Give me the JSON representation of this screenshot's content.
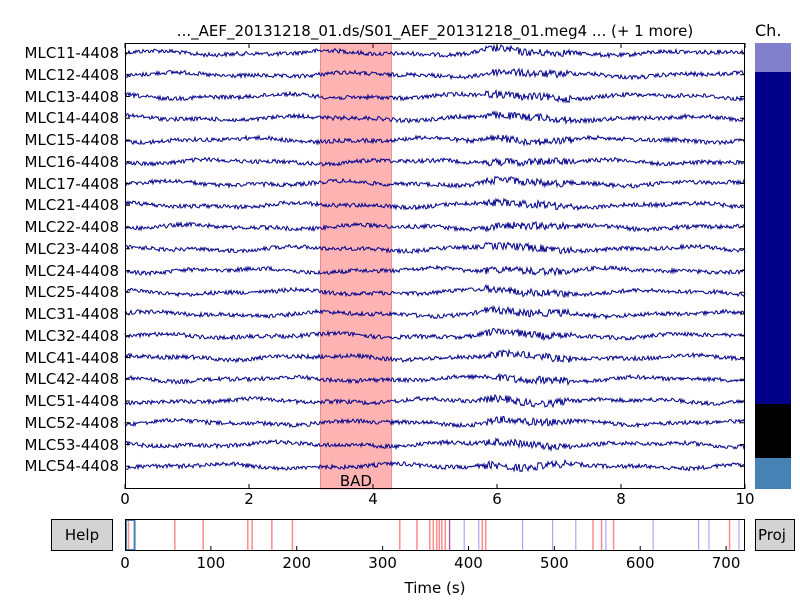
{
  "window": {
    "title": "..._AEF_20131218_01.ds/S01_AEF_20131218_01.meg4 ... (+ 1 more)",
    "channel_scroll_label": "Ch."
  },
  "channels": [
    "MLC11-4408",
    "MLC12-4408",
    "MLC13-4408",
    "MLC14-4408",
    "MLC15-4408",
    "MLC16-4408",
    "MLC17-4408",
    "MLC21-4408",
    "MLC22-4408",
    "MLC23-4408",
    "MLC24-4408",
    "MLC25-4408",
    "MLC31-4408",
    "MLC32-4408",
    "MLC41-4408",
    "MLC42-4408",
    "MLC51-4408",
    "MLC52-4408",
    "MLC53-4408",
    "MLC54-4408"
  ],
  "main_axis": {
    "xlim": [
      0,
      10
    ],
    "ticks": [
      "0",
      "2",
      "4",
      "6",
      "8",
      "10"
    ],
    "bad_annotation": {
      "label": "BAD",
      "start": 3.15,
      "end": 4.3,
      "color": "#ffb3b3"
    },
    "trace_color": "#00008b"
  },
  "overview_axis": {
    "xlim": [
      0,
      722
    ],
    "ticks": [
      "0",
      "100",
      "200",
      "300",
      "400",
      "500",
      "600",
      "700"
    ],
    "xlabel": "Time (s)",
    "bad_segments": [
      4,
      58,
      91,
      143,
      148,
      171,
      195,
      320,
      340,
      355,
      359,
      363,
      366,
      369,
      373,
      378,
      416,
      420,
      545,
      555,
      569,
      704
    ],
    "events": [
      378,
      395,
      412,
      463,
      498,
      525,
      560,
      615,
      668,
      680,
      715,
      722
    ],
    "view_window": [
      0,
      10
    ]
  },
  "buttons": {
    "help": "Help",
    "proj": "Proj"
  },
  "channel_scrollbar": {
    "segments": [
      {
        "color": "#8080cc",
        "fraction": 0.065
      },
      {
        "color": "#000088",
        "fraction": 0.745
      },
      {
        "color": "#000000",
        "fraction": 0.12
      },
      {
        "color": "#4682b4",
        "fraction": 0.07
      }
    ],
    "viewport_fraction": 0.065
  },
  "colors": {
    "bad_line": "#ff0000",
    "event_line": "#0000ff",
    "view_window": "#4682b4"
  }
}
